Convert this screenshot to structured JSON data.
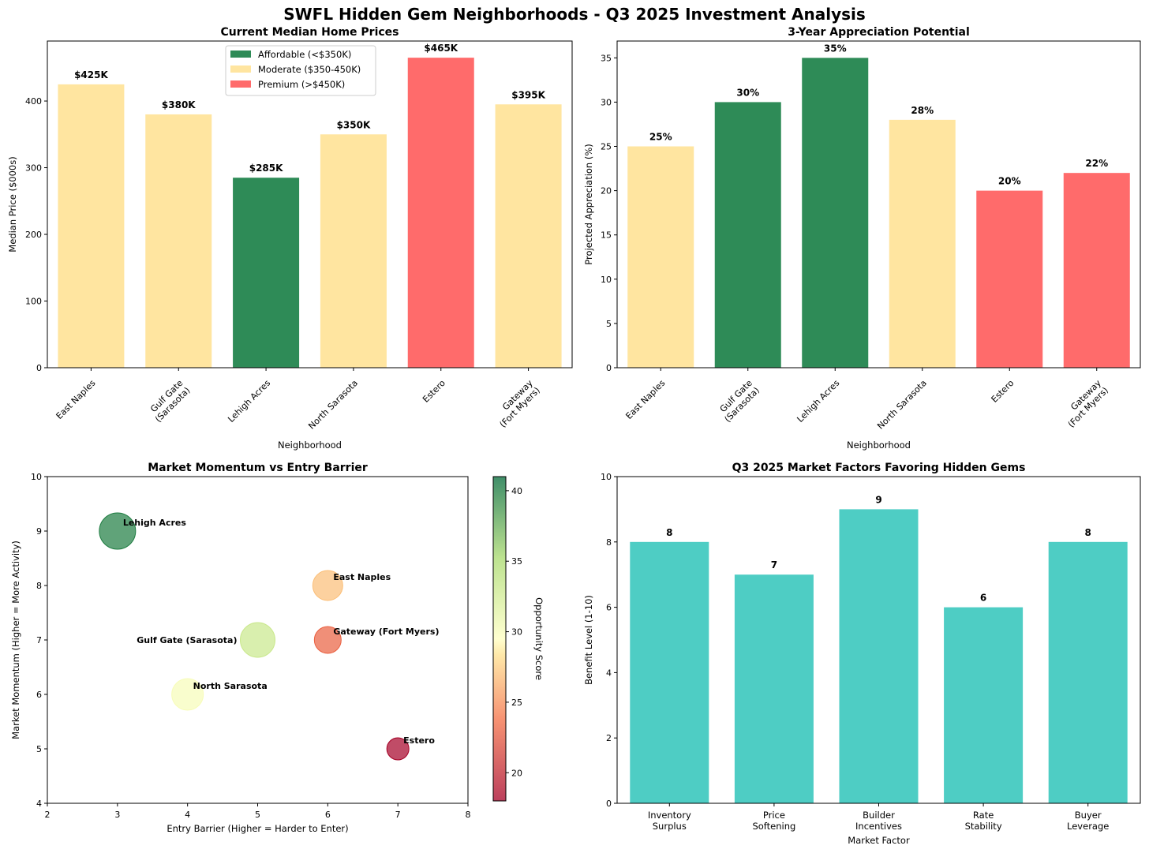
{
  "title": "SWFL Hidden Gem Neighborhoods - Q3 2025 Investment Analysis",
  "chart_data": [
    {
      "type": "bar",
      "title": "Current Median Home Prices",
      "xlabel": "Neighborhood",
      "ylabel": "Median Price ($000s)",
      "ylim": [
        0,
        490
      ],
      "yticks": [
        0,
        100,
        200,
        300,
        400
      ],
      "categories": [
        "East Naples",
        "Gulf Gate\n(Sarasota)",
        "Lehigh Acres",
        "North Sarasota",
        "Estero",
        "Gateway\n(Fort Myers)"
      ],
      "values": [
        425,
        380,
        285,
        350,
        465,
        395
      ],
      "labels": [
        "$425K",
        "$380K",
        "$285K",
        "$350K",
        "$465K",
        "$395K"
      ],
      "bar_colors": [
        "#FFE5A0",
        "#FFE5A0",
        "#2E8B57",
        "#FFE5A0",
        "#FF6B6B",
        "#FFE5A0"
      ],
      "legend": [
        {
          "label": "Affordable (<$350K)",
          "color": "#2E8B57"
        },
        {
          "label": "Moderate ($350-450K)",
          "color": "#FFE5A0"
        },
        {
          "label": "Premium (>$450K)",
          "color": "#FF6B6B"
        }
      ],
      "legend_position": "top-left"
    },
    {
      "type": "bar",
      "title": "3-Year Appreciation Potential",
      "xlabel": "Neighborhood",
      "ylabel": "Projected Appreciation (%)",
      "ylim": [
        0,
        36.9
      ],
      "yticks": [
        0,
        5,
        10,
        15,
        20,
        25,
        30,
        35
      ],
      "categories": [
        "East Naples",
        "Gulf Gate\n(Sarasota)",
        "Lehigh Acres",
        "North Sarasota",
        "Estero",
        "Gateway\n(Fort Myers)"
      ],
      "values": [
        25,
        30,
        35,
        28,
        20,
        22
      ],
      "labels": [
        "25%",
        "30%",
        "35%",
        "28%",
        "20%",
        "22%"
      ],
      "bar_colors": [
        "#FFE5A0",
        "#2E8B57",
        "#2E8B57",
        "#FFE5A0",
        "#FF6B6B",
        "#FF6B6B"
      ]
    },
    {
      "type": "scatter",
      "title": "Market Momentum vs Entry Barrier",
      "xlabel": "Entry Barrier (Higher = Harder to Enter)",
      "ylabel": "Market Momentum (Higher = More Activity)",
      "xlim": [
        2,
        8
      ],
      "ylim": [
        4,
        10
      ],
      "xticks": [
        2,
        3,
        4,
        5,
        6,
        7,
        8
      ],
      "yticks": [
        4,
        5,
        6,
        7,
        8,
        9,
        10
      ],
      "colorbar": {
        "label": "Opportunity Score",
        "range": [
          18,
          41
        ],
        "ticks": [
          20,
          25,
          30,
          35,
          40
        ]
      },
      "points": [
        {
          "name": "East Naples",
          "x": 6,
          "y": 8,
          "score": 27,
          "size": 19
        },
        {
          "name": "Gulf Gate (Sarasota)",
          "x": 5,
          "y": 7,
          "score": 33,
          "size": 22
        },
        {
          "name": "Lehigh Acres",
          "x": 3,
          "y": 9,
          "score": 40,
          "size": 23
        },
        {
          "name": "North Sarasota",
          "x": 4,
          "y": 6,
          "score": 30,
          "size": 20
        },
        {
          "name": "Estero",
          "x": 7,
          "y": 5,
          "score": 18,
          "size": 14
        },
        {
          "name": "Gateway (Fort Myers)",
          "x": 6,
          "y": 7,
          "score": 23,
          "size": 17
        }
      ]
    },
    {
      "type": "bar",
      "title": "Q3 2025 Market Factors Favoring Hidden Gems",
      "xlabel": "Market Factor",
      "ylabel": "Benefit Level (1-10)",
      "ylim": [
        0,
        10
      ],
      "yticks": [
        0,
        2,
        4,
        6,
        8,
        10
      ],
      "categories": [
        "Inventory\nSurplus",
        "Price\nSoftening",
        "Builder\nIncentives",
        "Rate\nStability",
        "Buyer\nLeverage"
      ],
      "values": [
        8,
        7,
        9,
        6,
        8
      ],
      "labels": [
        "8",
        "7",
        "9",
        "6",
        "8"
      ],
      "bar_color": "#4ECDC4"
    }
  ]
}
